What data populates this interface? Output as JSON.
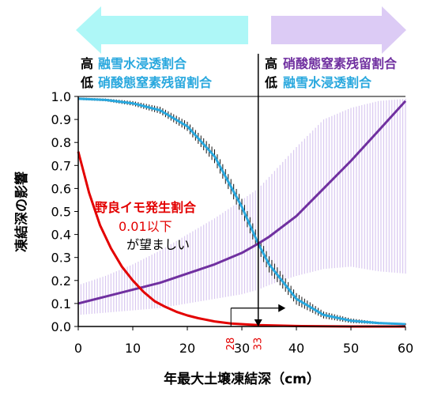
{
  "chart_data": {
    "type": "line",
    "xlabel": "年最大土壌凍結深（cm）",
    "ylabel": "凍結深の影響",
    "xlim": [
      0,
      60
    ],
    "ylim": [
      0,
      1.0
    ],
    "x_ticks": [
      "0",
      "10",
      "20",
      "30",
      "40",
      "50",
      "60"
    ],
    "y_ticks": [
      "0.0",
      "0.1",
      "0.2",
      "0.3",
      "0.4",
      "0.5",
      "0.6",
      "0.7",
      "0.8",
      "0.9",
      "1.0"
    ],
    "grid": false,
    "series": [
      {
        "name": "融雪水浸透割合",
        "color": "#29a8de",
        "x": [
          0,
          5,
          10,
          15,
          20,
          25,
          30,
          33,
          35,
          40,
          45,
          50,
          55,
          60
        ],
        "y": [
          0.99,
          0.985,
          0.97,
          0.94,
          0.87,
          0.74,
          0.52,
          0.36,
          0.27,
          0.12,
          0.05,
          0.025,
          0.015,
          0.01
        ],
        "band_color": "#111111",
        "band_halfwidth": [
          0.005,
          0.006,
          0.01,
          0.015,
          0.02,
          0.03,
          0.035,
          0.035,
          0.035,
          0.025,
          0.015,
          0.01,
          0.005,
          0.004
        ]
      },
      {
        "name": "硝酸態窒素残留割合",
        "color": "#7030a0",
        "x": [
          0,
          5,
          10,
          15,
          20,
          25,
          30,
          33,
          35,
          40,
          45,
          50,
          55,
          60
        ],
        "y": [
          0.1,
          0.13,
          0.16,
          0.19,
          0.23,
          0.27,
          0.32,
          0.36,
          0.39,
          0.48,
          0.6,
          0.72,
          0.85,
          0.98
        ],
        "band_color": "#d9c8f0",
        "band_low": [
          0.05,
          0.06,
          0.07,
          0.08,
          0.1,
          0.12,
          0.14,
          0.16,
          0.18,
          0.22,
          0.25,
          0.26,
          0.24,
          0.23
        ],
        "band_high": [
          0.18,
          0.22,
          0.27,
          0.33,
          0.4,
          0.47,
          0.55,
          0.6,
          0.65,
          0.78,
          0.9,
          0.95,
          0.98,
          0.99
        ]
      },
      {
        "name": "野良イモ発生割合",
        "color": "#e30000",
        "x": [
          0,
          2,
          4,
          6,
          8,
          10,
          12,
          14,
          16,
          18,
          20,
          22,
          25,
          28,
          33,
          40,
          50,
          60
        ],
        "y": [
          0.76,
          0.58,
          0.44,
          0.34,
          0.26,
          0.2,
          0.15,
          0.11,
          0.085,
          0.064,
          0.048,
          0.036,
          0.022,
          0.013,
          0.006,
          0.002,
          0.0,
          0.0
        ]
      }
    ],
    "vertical_line": {
      "x": 33
    },
    "arrow": {
      "from_x": 28,
      "to_x": 38,
      "y": 0.08
    },
    "markers": [
      {
        "label": "28",
        "x": 28
      },
      {
        "label": "33",
        "x": 33
      }
    ],
    "annotations": {
      "potato_title": "野良イモ発生割合",
      "potato_value": "0.01以下",
      "potato_desc": "が望ましい"
    },
    "legend_left": {
      "rows": [
        {
          "level": "高",
          "label": "融雪水浸透割合",
          "color": "#29a8de"
        },
        {
          "level": "低",
          "label": "硝酸態窒素残留割合",
          "color": "#29a8de"
        }
      ],
      "arrow_color": "#aef7f7"
    },
    "legend_right": {
      "rows": [
        {
          "level": "高",
          "label": "硝酸態窒素残留割合",
          "color": "#7030a0"
        },
        {
          "level": "低",
          "label": "融雪水浸透割合",
          "color": "#29a8de"
        }
      ],
      "arrow_color": "#dccbf5"
    }
  }
}
